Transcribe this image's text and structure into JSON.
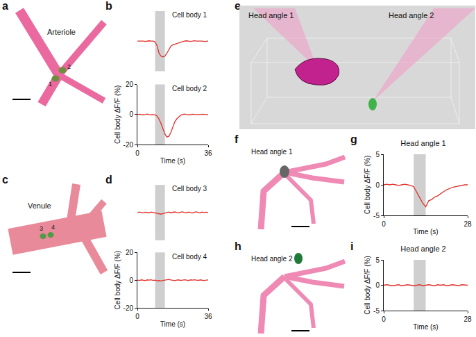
{
  "panels": {
    "a": {
      "letter": "a",
      "vessel": "Arteriole",
      "cells": [
        "1",
        "2"
      ]
    },
    "c": {
      "letter": "c",
      "vessel": "Venule",
      "cells": [
        "3",
        "4"
      ]
    },
    "e": {
      "letter": "e",
      "views": [
        "Head angle 1",
        "Head angle 2"
      ]
    },
    "f": {
      "letter": "f",
      "view": "Head angle 1"
    },
    "h": {
      "letter": "h",
      "view": "Head angle 2"
    }
  },
  "chart_data": [
    {
      "type": "line",
      "panel": "b",
      "title": "Cell body 1",
      "color": "#e0302a",
      "x": [
        0,
        1,
        2,
        3,
        4,
        5,
        6,
        7,
        8,
        9,
        10,
        11,
        12,
        13,
        14,
        15,
        16,
        17,
        18,
        19,
        20,
        21,
        22,
        23,
        24,
        25,
        26,
        27,
        28,
        29,
        30,
        31,
        32,
        33,
        34,
        35,
        36
      ],
      "values": [
        0,
        0,
        0.3,
        0,
        -0.2,
        0,
        0.2,
        0,
        0,
        -0.5,
        -3,
        -8,
        -10,
        -10.5,
        -10,
        -8,
        -5.5,
        -3.5,
        -2.5,
        -2,
        -1.5,
        -1,
        -0.5,
        -0.3,
        0,
        0.2,
        0,
        -0.2,
        0,
        0.3,
        0,
        0,
        0.2,
        0,
        -0.2,
        0,
        0
      ],
      "stimulus": [
        9,
        14
      ],
      "xlim": [
        0,
        36
      ],
      "ylim": [
        -20,
        20
      ],
      "tick_labels": false
    },
    {
      "type": "line",
      "title": "Cell body 2",
      "color": "#e0302a",
      "x": [
        0,
        1,
        2,
        3,
        4,
        5,
        6,
        7,
        8,
        9,
        10,
        11,
        12,
        13,
        14,
        15,
        16,
        17,
        18,
        19,
        20,
        21,
        22,
        23,
        24,
        25,
        26,
        27,
        28,
        29,
        30,
        31,
        32,
        33,
        34,
        35,
        36
      ],
      "values": [
        0,
        0.2,
        0,
        -0.2,
        0,
        0.3,
        0,
        -0.2,
        0,
        -0.3,
        -1,
        -3,
        -6,
        -10,
        -13,
        -15,
        -14.5,
        -12,
        -8,
        -5,
        -3,
        -1.5,
        -0.5,
        0,
        0.3,
        0,
        -0.2,
        0,
        0.2,
        0,
        0,
        -0.2,
        0,
        0.2,
        0,
        0,
        0
      ],
      "stimulus": [
        9,
        14
      ],
      "xlim": [
        0,
        36
      ],
      "ylim": [
        -20,
        20
      ],
      "xticks": [
        0,
        36
      ],
      "yticks": [
        -20,
        0,
        20
      ],
      "x_label": "Time (s)",
      "y_label": "Cell body ΔF/F (%)"
    },
    {
      "type": "line",
      "panel": "d",
      "title": "Cell body 3",
      "color": "#e0302a",
      "x": [
        0,
        1,
        2,
        3,
        4,
        5,
        6,
        7,
        8,
        9,
        10,
        11,
        12,
        13,
        14,
        15,
        16,
        17,
        18,
        19,
        20,
        21,
        22,
        23,
        24,
        25,
        26,
        27,
        28,
        29,
        30,
        31,
        32,
        33,
        34,
        35,
        36
      ],
      "values": [
        0,
        0.3,
        0,
        -0.3,
        0.2,
        0,
        -0.2,
        0.3,
        0,
        -0.3,
        -0.8,
        -1,
        -1.2,
        -0.8,
        -0.5,
        0,
        0.3,
        -0.2,
        0,
        0.4,
        0,
        -0.3,
        0.2,
        0.5,
        0,
        -0.2,
        0.3,
        0,
        -0.4,
        0.2,
        0.5,
        0,
        -0.2,
        0.3,
        0,
        0.2,
        0
      ],
      "stimulus": [
        9,
        14
      ],
      "xlim": [
        0,
        36
      ],
      "ylim": [
        -20,
        20
      ],
      "tick_labels": false
    },
    {
      "type": "line",
      "title": "Cell body 4",
      "color": "#e0302a",
      "x": [
        0,
        1,
        2,
        3,
        4,
        5,
        6,
        7,
        8,
        9,
        10,
        11,
        12,
        13,
        14,
        15,
        16,
        17,
        18,
        19,
        20,
        21,
        22,
        23,
        24,
        25,
        26,
        27,
        28,
        29,
        30,
        31,
        32,
        33,
        34,
        35,
        36
      ],
      "values": [
        0,
        -0.2,
        0.2,
        0,
        -0.3,
        0.2,
        0,
        0.3,
        -0.2,
        0,
        -0.5,
        -0.3,
        -0.6,
        -0.2,
        0,
        0.3,
        0.5,
        0.2,
        0,
        -0.3,
        0,
        0.2,
        -0.2,
        0,
        0.3,
        0,
        -0.3,
        0.2,
        0,
        0.3,
        0,
        -0.2,
        0.2,
        0,
        -0.3,
        0,
        0.2
      ],
      "stimulus": [
        9,
        14
      ],
      "xlim": [
        0,
        36
      ],
      "ylim": [
        -20,
        20
      ],
      "xticks": [
        0,
        36
      ],
      "yticks": [
        -20,
        0,
        20
      ],
      "x_label": "Time (s)",
      "y_label": "Cell body ΔF/F (%)"
    },
    {
      "type": "line",
      "panel": "g",
      "title": "Head angle 1",
      "color": "#e0302a",
      "x": [
        0,
        1,
        2,
        3,
        4,
        5,
        6,
        7,
        8,
        9,
        10,
        11,
        12,
        13,
        14,
        15,
        16,
        17,
        18,
        19,
        20,
        21,
        22,
        23,
        24,
        25,
        26,
        27,
        28
      ],
      "values": [
        0,
        0.1,
        0,
        0.1,
        0,
        -0.1,
        0,
        0.1,
        0,
        -0.1,
        -0.3,
        -1.2,
        -2.2,
        -3,
        -3.6,
        -2.6,
        -2.4,
        -2,
        -1.8,
        -1.4,
        -1.1,
        -0.8,
        -0.6,
        -0.4,
        -0.3,
        -0.2,
        -0.1,
        0,
        0
      ],
      "stimulus": [
        10,
        14
      ],
      "xlim": [
        0,
        28
      ],
      "ylim": [
        -5,
        5
      ],
      "xticks": [
        0,
        28
      ],
      "yticks": [
        -5,
        0,
        5
      ],
      "x_label": "Time (s)",
      "y_label": "Cell body ΔF/F (%)"
    },
    {
      "type": "line",
      "panel": "i",
      "title": "Head angle 2",
      "color": "#e0302a",
      "x": [
        0,
        1,
        2,
        3,
        4,
        5,
        6,
        7,
        8,
        9,
        10,
        11,
        12,
        13,
        14,
        15,
        16,
        17,
        18,
        19,
        20,
        21,
        22,
        23,
        24,
        25,
        26,
        27,
        28
      ],
      "values": [
        0,
        0.1,
        0,
        -0.1,
        0,
        0.1,
        -0.1,
        0,
        0.1,
        0,
        -0.1,
        0,
        0.1,
        -0.1,
        0,
        0.1,
        0,
        -0.1,
        0.1,
        0,
        0.1,
        -0.1,
        0,
        0.1,
        0,
        -0.1,
        0.1,
        0,
        0
      ],
      "stimulus": [
        10,
        14
      ],
      "xlim": [
        0,
        28
      ],
      "ylim": [
        -5,
        5
      ],
      "xticks": [
        0,
        28
      ],
      "yticks": [
        -5,
        0,
        5
      ],
      "x_label": "Time (s)",
      "y_label": "Cell body ΔF/F (%)"
    }
  ]
}
